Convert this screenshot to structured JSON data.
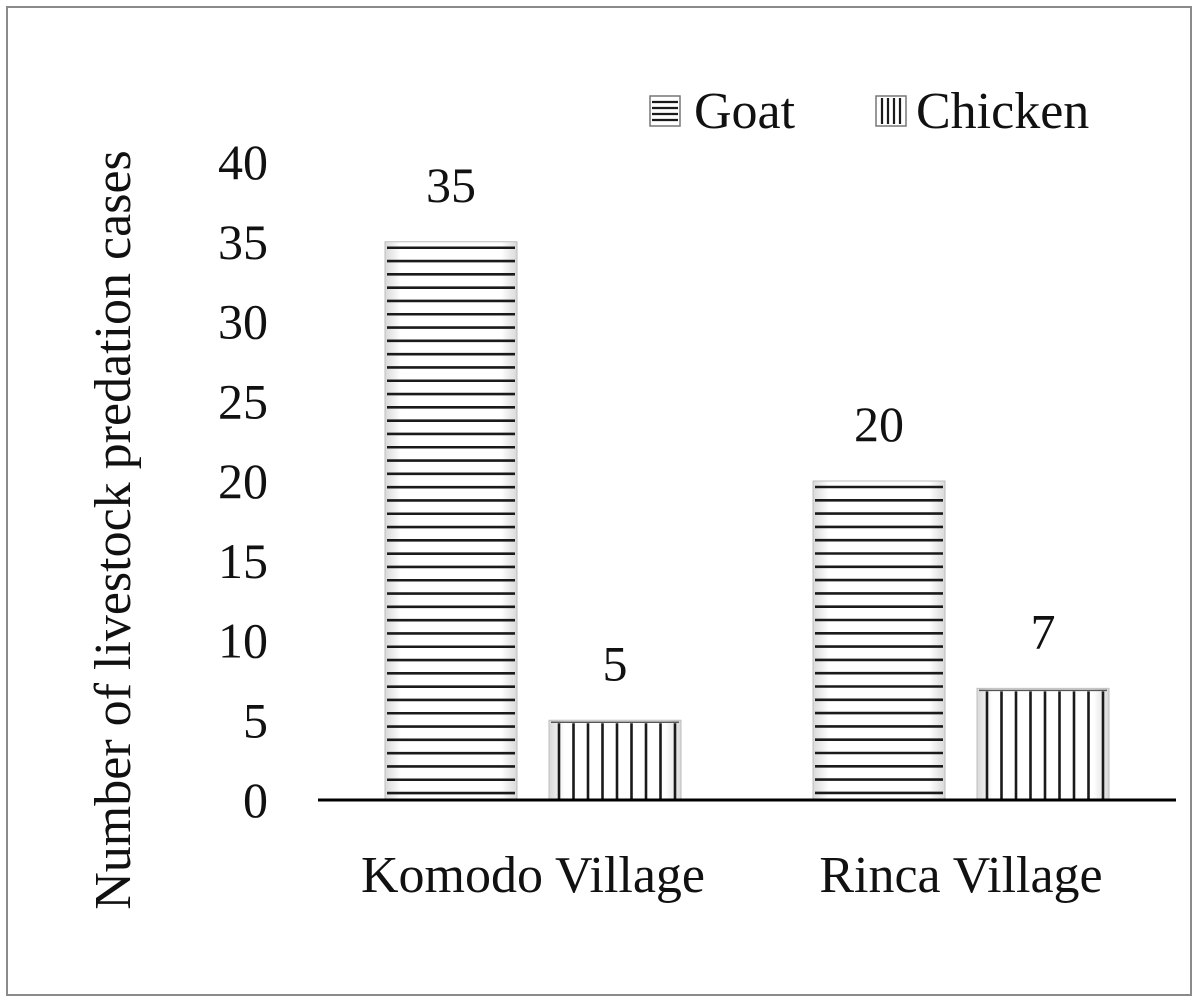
{
  "chart_data": {
    "type": "bar",
    "title": "",
    "xlabel": "",
    "ylabel": "Number of livestock predation cases",
    "categories": [
      "Komodo Village",
      "Rinca Village"
    ],
    "series": [
      {
        "name": "Goat",
        "values": [
          35,
          20
        ],
        "pattern": "horizontal-stripes"
      },
      {
        "name": "Chicken",
        "values": [
          5,
          7
        ],
        "pattern": "vertical-stripes"
      }
    ],
    "ylim": [
      0,
      40
    ],
    "yticks": [
      0,
      5,
      10,
      15,
      20,
      25,
      30,
      35,
      40
    ],
    "data_labels": true,
    "grid": false,
    "legend_position": "top-right",
    "colors": {
      "stripe": "#1a1a1a",
      "axis": "#000000",
      "border": "#8a8a8a",
      "background": "#ffffff"
    }
  }
}
